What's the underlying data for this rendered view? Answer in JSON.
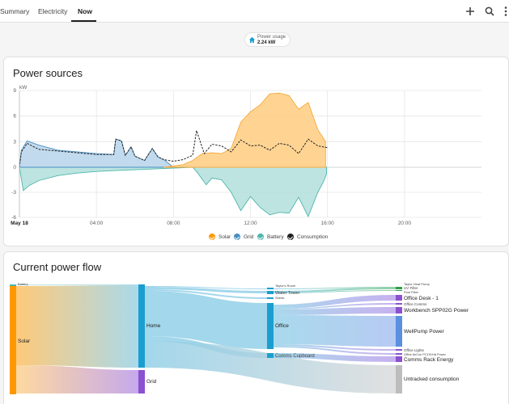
{
  "tabs": [
    {
      "label": "Summary",
      "active": false
    },
    {
      "label": "Electricity",
      "active": false
    },
    {
      "label": "Now",
      "active": true
    }
  ],
  "toolbar": {
    "icons": [
      "add-icon",
      "search-icon",
      "more-vert-icon"
    ]
  },
  "power_usage": {
    "label": "Power usage",
    "value": "2.24 kW",
    "icon": "home-icon"
  },
  "power_sources": {
    "title": "Power sources",
    "legend": [
      {
        "name": "Solar",
        "color": "#ff9800"
      },
      {
        "name": "Grid",
        "color": "#488fc2"
      },
      {
        "name": "Battery",
        "color": "#4db6ac"
      },
      {
        "name": "Consumption",
        "color": "#212121"
      }
    ]
  },
  "chart_data": {
    "type": "area",
    "ylabel": "kW",
    "ylim": [
      -6,
      9
    ],
    "yticks": [
      9,
      6,
      3,
      0,
      -3,
      -6
    ],
    "xlim": [
      0,
      24
    ],
    "xticks": [
      {
        "value": 0,
        "label": "May 18"
      },
      {
        "value": 4,
        "label": "04:00"
      },
      {
        "value": 8,
        "label": "08:00"
      },
      {
        "value": 12,
        "label": "12:00"
      },
      {
        "value": 16,
        "label": "16:00"
      },
      {
        "value": 20,
        "label": "20:00"
      }
    ],
    "grid": true,
    "legend_position": "bottom",
    "series": [
      {
        "name": "Solar",
        "x": [
          7.5,
          8.5,
          9,
          9.5,
          10,
          10.5,
          11,
          11.5,
          12,
          12.5,
          13,
          13.5,
          14,
          14.5,
          15,
          15.5,
          15.9
        ],
        "values": [
          0,
          0.3,
          0.8,
          1.6,
          1.7,
          1.6,
          2.2,
          5.3,
          6.5,
          7.3,
          8.6,
          8.7,
          8.4,
          6.8,
          7.6,
          4.4,
          3.0
        ]
      },
      {
        "name": "Grid",
        "x": [
          0,
          0.1,
          0.4,
          1,
          2,
          3,
          4,
          4.9,
          5,
          5.3,
          5.5,
          5.8,
          6,
          6.5,
          6.9,
          7.2,
          7.5,
          8
        ],
        "values": [
          0,
          2.0,
          3.1,
          2.6,
          2.0,
          1.8,
          1.6,
          1.5,
          3.3,
          3.1,
          1.4,
          2.4,
          1.3,
          0.8,
          2.2,
          1.2,
          0.9,
          0
        ]
      },
      {
        "name": "Battery",
        "x": [
          0,
          0.2,
          0.5,
          1,
          2,
          3,
          4,
          5,
          6,
          7,
          8,
          9,
          9.2,
          9.7,
          10,
          10.5,
          11,
          11.5,
          12,
          12.5,
          13,
          13.5,
          14,
          14.5,
          15,
          15.5,
          15.8,
          15.95
        ],
        "values": [
          0,
          -2.8,
          -2.2,
          -1.6,
          -1.0,
          -0.7,
          -0.5,
          -0.4,
          -0.3,
          -0.2,
          -0.1,
          0,
          -0.5,
          -2.1,
          -1.3,
          -1.5,
          -3.0,
          -5.2,
          -3.5,
          -4.8,
          -5.7,
          -5.4,
          -5.5,
          -3.6,
          -5.9,
          -3.0,
          -1.7,
          -0.8
        ]
      },
      {
        "name": "Consumption",
        "x": [
          0,
          0.1,
          0.4,
          1,
          2,
          3,
          4,
          4.9,
          5,
          5.3,
          5.5,
          5.8,
          6,
          6.5,
          6.9,
          7.2,
          7.5,
          8,
          8.5,
          9,
          9.2,
          9.6,
          10,
          10.5,
          11,
          11.5,
          12,
          12.5,
          13,
          13.5,
          14,
          14.5,
          15,
          15.5,
          16
        ],
        "values": [
          0,
          1.8,
          2.8,
          2.1,
          1.9,
          1.7,
          1.5,
          1.5,
          3.3,
          3.1,
          1.4,
          2.4,
          1.3,
          0.8,
          2.2,
          1.2,
          0.9,
          0.7,
          0.9,
          1.4,
          4.3,
          1.6,
          2.7,
          2.5,
          1.8,
          3.2,
          2.5,
          2.6,
          2.0,
          2.8,
          2.6,
          1.6,
          3.3,
          2.5,
          2.3
        ]
      }
    ]
  },
  "power_flow": {
    "title": "Current power flow",
    "nodes": {
      "battery": "Battery",
      "solar": "Solar",
      "home": "Home",
      "grid": "Grid",
      "taylors_room": "Taylor's Room",
      "water_tower": "Water Tower",
      "sheds": "Sheds",
      "office": "Office",
      "comms_cupboard": "Comms Cupboard",
      "taylor_heat_pump": "Taylor Heat Pump",
      "uv_filter": "UV Filter",
      "pool_filter": "Pool Filter",
      "office_desk_1": "Office Desk - 1",
      "office_comms": "Office Comms",
      "workbench": "Workbench SPP02G Power",
      "wellpump": "WellPump Power",
      "office_lights": "Office Lights",
      "office_aircon": "Office AirCon PC191HA Power",
      "comms_rack": "Comms Rack Energy",
      "untracked": "Untracked consumption"
    },
    "colors": {
      "solar": "#ff9800",
      "home": "#1a9ecf",
      "grid": "#8b50d0",
      "office": "#1a9ecf",
      "comms": "#1a9ecf",
      "green": "#2f9e4b",
      "purple": "#8b50d0",
      "blue": "#5990e0",
      "gray": "#bdbdbd"
    }
  }
}
